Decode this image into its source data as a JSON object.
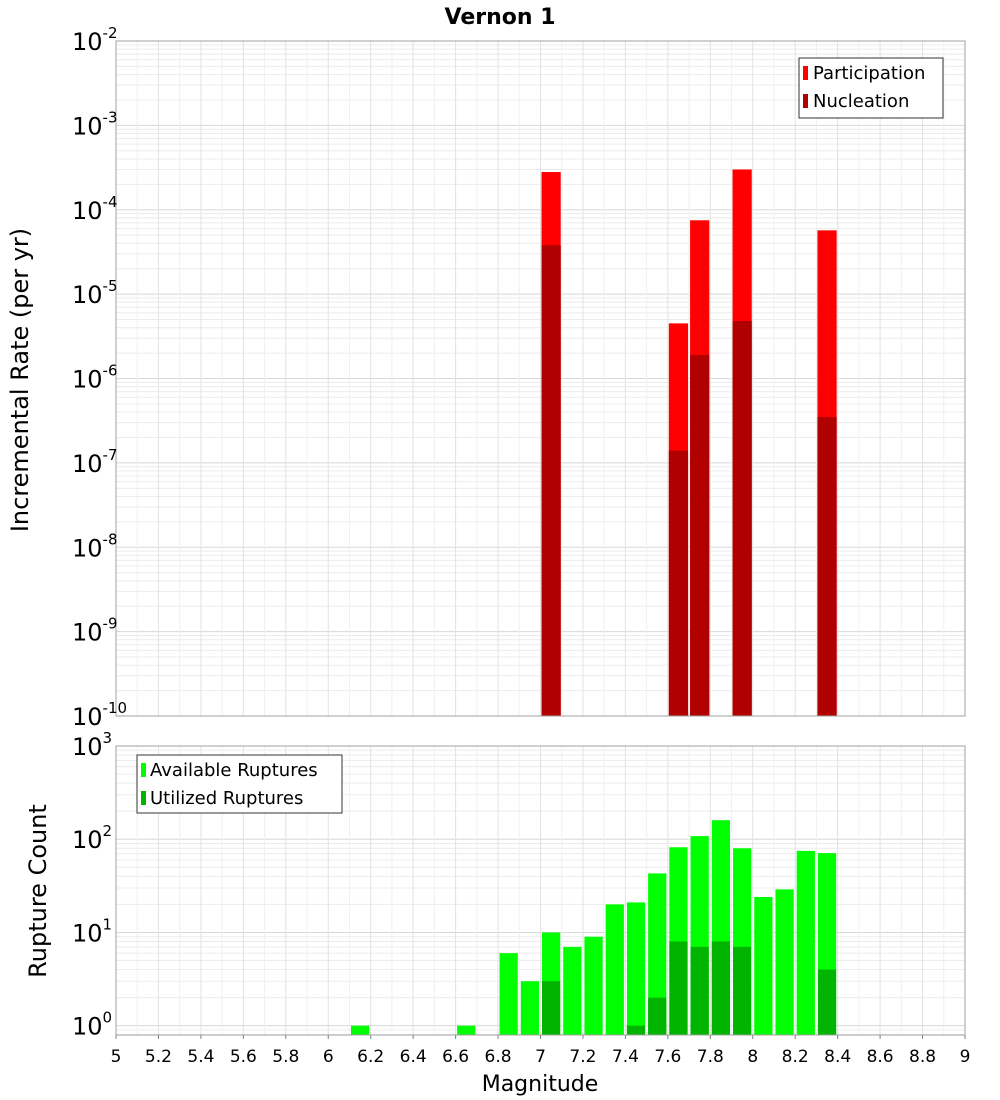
{
  "chart_data": [
    {
      "type": "bar",
      "title": "Vernon 1",
      "ylabel": "Incremental Rate (per yr)",
      "xlabel": "",
      "yscale": "log",
      "ylim_exp": [
        -10,
        -2
      ],
      "xlim": [
        5,
        9
      ],
      "bar_width": 0.1,
      "legend_position": "top-right",
      "series": [
        {
          "name": "Participation",
          "color": "#ff0000",
          "x": [
            7.05,
            7.65,
            7.75,
            7.95,
            8.35
          ],
          "values": [
            0.00028,
            4.5e-06,
            7.5e-05,
            0.0003,
            5.7e-05
          ]
        },
        {
          "name": "Nucleation",
          "color": "#b00000",
          "x": [
            7.05,
            7.65,
            7.75,
            7.95,
            8.35
          ],
          "values": [
            3.8e-05,
            1.4e-07,
            1.9e-06,
            4.8e-06,
            3.5e-07
          ]
        }
      ]
    },
    {
      "type": "bar",
      "title": "",
      "ylabel": "Rupture Count",
      "xlabel": "Magnitude",
      "yscale": "log",
      "ylim_exp": [
        0,
        3
      ],
      "xlim": [
        5,
        9
      ],
      "bar_width": 0.1,
      "legend_position": "top-left",
      "x_ticks": [
        "5",
        "5.2",
        "5.4",
        "5.6",
        "5.8",
        "6",
        "6.2",
        "6.4",
        "6.6",
        "6.8",
        "7",
        "7.2",
        "7.4",
        "7.6",
        "7.8",
        "8",
        "8.2",
        "8.4",
        "8.6",
        "8.8",
        "9"
      ],
      "series": [
        {
          "name": "Available Ruptures",
          "color": "#00ff00",
          "x": [
            6.15,
            6.65,
            6.85,
            6.95,
            7.05,
            7.15,
            7.25,
            7.35,
            7.45,
            7.55,
            7.65,
            7.75,
            7.85,
            7.95,
            8.05,
            8.15,
            8.25,
            8.35
          ],
          "values": [
            1,
            1,
            6,
            3,
            10,
            7,
            9,
            20,
            21,
            43,
            82,
            108,
            160,
            80,
            24,
            29,
            75,
            71
          ]
        },
        {
          "name": "Utilized Ruptures",
          "color": "#00b400",
          "x": [
            7.05,
            7.45,
            7.55,
            7.65,
            7.75,
            7.85,
            7.95,
            8.35
          ],
          "values": [
            3,
            1,
            2,
            8,
            7,
            8,
            7,
            4
          ]
        }
      ]
    }
  ]
}
